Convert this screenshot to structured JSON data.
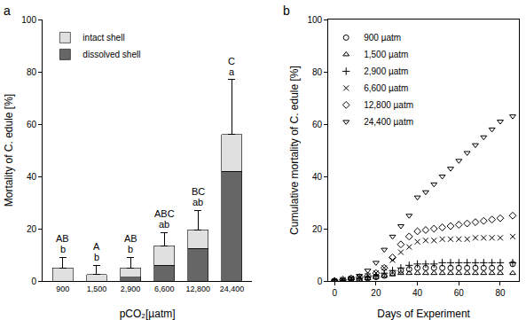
{
  "chart_data": [
    {
      "type": "bar",
      "panel": "a",
      "stacked": true,
      "grid": false,
      "legend": "top left",
      "x_label": "pCO₂[µatm]",
      "y_label": "Mortality of C. edule [%]",
      "categories": [
        "900",
        "1,500",
        "2,900",
        "6,600",
        "12,800",
        "24,400"
      ],
      "ylim": [
        0,
        100
      ],
      "yticks": [
        0,
        20,
        40,
        60,
        80,
        100
      ],
      "series": [
        {
          "name": "dissolved shell",
          "color": "#666666",
          "values": [
            0,
            0,
            1.5,
            6,
            12.5,
            42
          ]
        },
        {
          "name": "intact shell",
          "color": "#e0e0e0",
          "values": [
            5,
            2.5,
            3.5,
            7.5,
            7,
            14
          ]
        }
      ],
      "errors": [
        4,
        3.5,
        4,
        5,
        7.5,
        21
      ],
      "letters_upper": [
        "AB",
        "A",
        "AB",
        "ABC",
        "BC",
        "C"
      ],
      "letters_lower": [
        "b",
        "b",
        "b",
        "ab",
        "ab",
        "a"
      ]
    },
    {
      "type": "scatter",
      "panel": "b",
      "grid": false,
      "legend": "top left",
      "x_label": "Days of Experiment",
      "y_label": "Cumulative mortality of C. edule [%]",
      "xlim": [
        -3,
        89
      ],
      "xticks": [
        0,
        20,
        40,
        60,
        80
      ],
      "ylim": [
        0,
        100
      ],
      "yticks": [
        0,
        20,
        40,
        60,
        80,
        100
      ],
      "x": [
        0,
        4,
        8,
        12,
        16,
        20,
        24,
        28,
        32,
        36,
        40,
        44,
        48,
        52,
        56,
        60,
        64,
        68,
        72,
        76,
        80
      ],
      "final_x": 86,
      "series": [
        {
          "name": "900 µatm",
          "color": "#000000",
          "marker": "circle",
          "final": 6.5,
          "values": [
            0,
            0,
            0.5,
            0.5,
            1,
            1.5,
            2,
            3,
            4,
            4.5,
            5,
            5,
            5,
            5,
            5,
            5,
            5,
            5,
            5,
            5,
            5
          ]
        },
        {
          "name": "1,500 µatm",
          "color": "#000000",
          "marker": "triangle-up",
          "final": 3,
          "values": [
            0,
            0,
            0,
            0.5,
            1,
            1.5,
            2,
            2.5,
            3,
            3,
            3,
            3,
            3,
            3,
            3,
            3,
            3,
            3,
            3,
            3,
            3
          ]
        },
        {
          "name": "2,900 µatm",
          "color": "#000000",
          "marker": "cross",
          "final": 7,
          "values": [
            0,
            0,
            0.5,
            1,
            1.5,
            2,
            3,
            4,
            5,
            6,
            6.5,
            6.5,
            6.5,
            7,
            7,
            7,
            7,
            7,
            7,
            7,
            7
          ]
        },
        {
          "name": "6,600 µatm",
          "color": "#000000",
          "marker": "x",
          "final": 17,
          "values": [
            0,
            0.5,
            1,
            1.5,
            2,
            3,
            5,
            8,
            11,
            13,
            15,
            15.5,
            15.5,
            16,
            16,
            16,
            16,
            16.5,
            16.5,
            16.5,
            16.5
          ]
        },
        {
          "name": "12,800 µatm",
          "color": "#000000",
          "marker": "diamond",
          "final": 25,
          "values": [
            0,
            0.5,
            1,
            1.5,
            2,
            3,
            5,
            9,
            14,
            17,
            19,
            19.5,
            20,
            20.5,
            21,
            21.5,
            22,
            22.5,
            23,
            23.5,
            24
          ]
        },
        {
          "name": "24,400 µatm",
          "color": "#000000",
          "marker": "triangle-down",
          "final": 63,
          "values": [
            0,
            0.5,
            1,
            2,
            4,
            7,
            12,
            17,
            21,
            25,
            32,
            34,
            37,
            40,
            43,
            46,
            49,
            52,
            55,
            58,
            61
          ]
        }
      ]
    }
  ]
}
